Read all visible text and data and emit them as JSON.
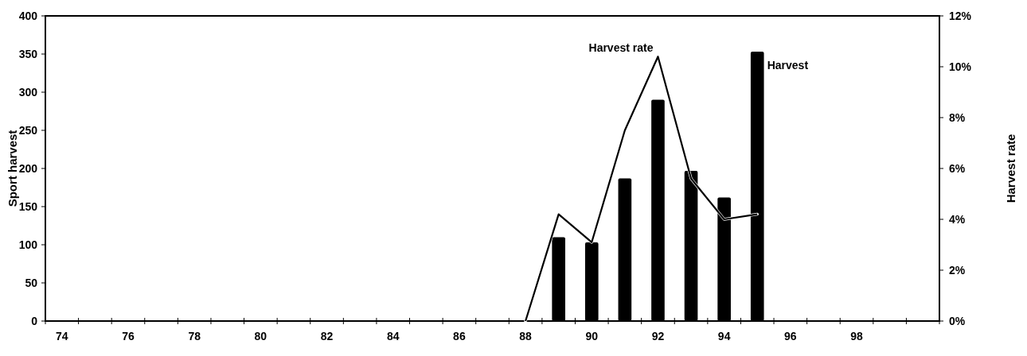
{
  "chart_data": {
    "type": "bar",
    "ylabel": "Sport harvest",
    "y2label": "Harvest rate",
    "categories": [
      "74",
      null,
      "76",
      null,
      "78",
      null,
      "80",
      null,
      "82",
      null,
      "84",
      null,
      "86",
      null,
      "88",
      null,
      "90",
      null,
      "92",
      null,
      "94",
      null,
      "96",
      null,
      "98",
      null,
      null
    ],
    "series": [
      {
        "name": "Harvest",
        "color": "#000000",
        "values": [
          null,
          null,
          null,
          null,
          null,
          null,
          null,
          null,
          null,
          null,
          null,
          null,
          null,
          null,
          null,
          110,
          103,
          187,
          290,
          197,
          162,
          353,
          null,
          null,
          null,
          null,
          null
        ]
      },
      {
        "name": "Harvest rate",
        "type": "line",
        "axis": "y2",
        "color": "#000000",
        "values": [
          null,
          null,
          null,
          null,
          null,
          null,
          null,
          null,
          null,
          null,
          null,
          null,
          null,
          null,
          0,
          4.2,
          3.1,
          7.5,
          10.4,
          5.6,
          4.0,
          4.2,
          null,
          null,
          null,
          null,
          null
        ]
      }
    ],
    "ylim": [
      0,
      400
    ],
    "yticks": [
      0,
      50,
      100,
      150,
      200,
      250,
      300,
      350,
      400
    ],
    "y2lim": [
      0,
      12
    ],
    "y2ticks": [
      {
        "value": 0,
        "label": "0%"
      },
      {
        "value": 2,
        "label": "2%"
      },
      {
        "value": 4,
        "label": "4%"
      },
      {
        "value": 6,
        "label": "6%"
      },
      {
        "value": 8,
        "label": "8%"
      },
      {
        "value": 10,
        "label": "10%"
      },
      {
        "value": 12,
        "label": "12%"
      }
    ],
    "grid": false,
    "marker": "none",
    "line_style": "solid"
  }
}
